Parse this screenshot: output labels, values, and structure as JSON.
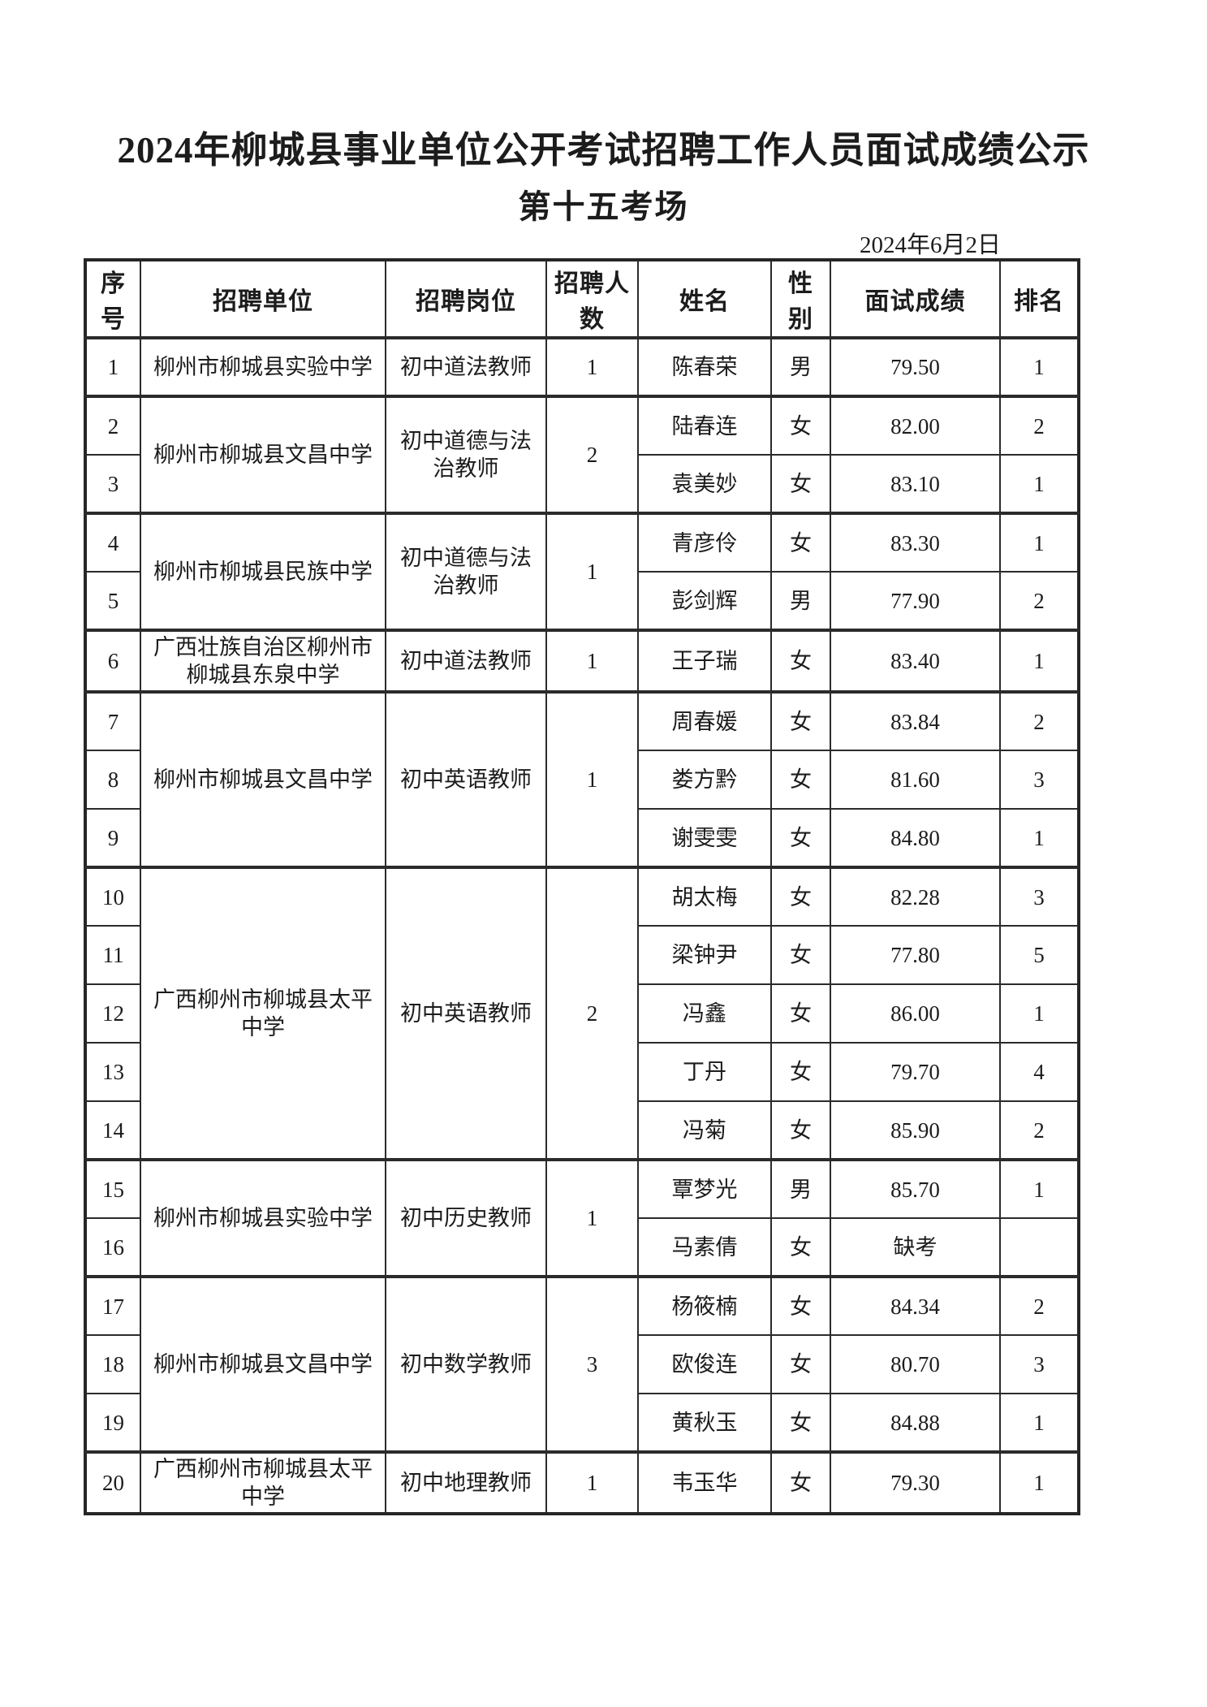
{
  "page": {
    "title": "2024年柳城县事业单位公开考试招聘工作人员面试成绩公示",
    "subtitle": "第十五考场",
    "date": "2024年6月2日"
  },
  "table": {
    "headers": [
      "序号",
      "招聘单位",
      "招聘岗位",
      "招聘人数",
      "姓名",
      "性别",
      "面试成绩",
      "排名"
    ],
    "rows": [
      {
        "no": "1",
        "unit": "柳州市柳城县实验中学",
        "unit_span": 1,
        "position": "初中道法教师",
        "position_span": 1,
        "count": "1",
        "count_span": 1,
        "name": "陈春荣",
        "gender": "男",
        "score": "79.50",
        "rank": "1",
        "group_start": true
      },
      {
        "no": "2",
        "unit": "柳州市柳城县文昌中学",
        "unit_span": 2,
        "position": "初中道德与法治教师",
        "position_span": 2,
        "count": "2",
        "count_span": 2,
        "name": "陆春连",
        "gender": "女",
        "score": "82.00",
        "rank": "2",
        "group_start": true
      },
      {
        "no": "3",
        "name": "袁美妙",
        "gender": "女",
        "score": "83.10",
        "rank": "1"
      },
      {
        "no": "4",
        "unit": "柳州市柳城县民族中学",
        "unit_span": 2,
        "position": "初中道德与法治教师",
        "position_span": 2,
        "count": "1",
        "count_span": 2,
        "name": "青彦伶",
        "gender": "女",
        "score": "83.30",
        "rank": "1",
        "group_start": true
      },
      {
        "no": "5",
        "name": "彭剑辉",
        "gender": "男",
        "score": "77.90",
        "rank": "2"
      },
      {
        "no": "6",
        "unit": "广西壮族自治区柳州市柳城县东泉中学",
        "unit_span": 1,
        "position": "初中道法教师",
        "position_span": 1,
        "count": "1",
        "count_span": 1,
        "name": "王子瑞",
        "gender": "女",
        "score": "83.40",
        "rank": "1",
        "group_start": true
      },
      {
        "no": "7",
        "unit": "柳州市柳城县文昌中学",
        "unit_span": 3,
        "position": "初中英语教师",
        "position_span": 3,
        "count": "1",
        "count_span": 3,
        "name": "周春媛",
        "gender": "女",
        "score": "83.84",
        "rank": "2",
        "group_start": true
      },
      {
        "no": "8",
        "name": "娄方黔",
        "gender": "女",
        "score": "81.60",
        "rank": "3"
      },
      {
        "no": "9",
        "name": "谢雯雯",
        "gender": "女",
        "score": "84.80",
        "rank": "1"
      },
      {
        "no": "10",
        "unit": "广西柳州市柳城县太平中学",
        "unit_span": 5,
        "position": "初中英语教师",
        "position_span": 5,
        "count": "2",
        "count_span": 5,
        "name": "胡太梅",
        "gender": "女",
        "score": "82.28",
        "rank": "3",
        "group_start": true
      },
      {
        "no": "11",
        "name": "梁钟尹",
        "gender": "女",
        "score": "77.80",
        "rank": "5"
      },
      {
        "no": "12",
        "name": "冯鑫",
        "gender": "女",
        "score": "86.00",
        "rank": "1"
      },
      {
        "no": "13",
        "name": "丁丹",
        "gender": "女",
        "score": "79.70",
        "rank": "4"
      },
      {
        "no": "14",
        "name": "冯菊",
        "gender": "女",
        "score": "85.90",
        "rank": "2"
      },
      {
        "no": "15",
        "unit": "柳州市柳城县实验中学",
        "unit_span": 2,
        "position": "初中历史教师",
        "position_span": 2,
        "count": "1",
        "count_span": 2,
        "name": "覃梦光",
        "gender": "男",
        "score": "85.70",
        "rank": "1",
        "group_start": true
      },
      {
        "no": "16",
        "name": "马素倩",
        "gender": "女",
        "score": "缺考",
        "rank": ""
      },
      {
        "no": "17",
        "unit": "柳州市柳城县文昌中学",
        "unit_span": 3,
        "position": "初中数学教师",
        "position_span": 3,
        "count": "3",
        "count_span": 3,
        "name": "杨筱楠",
        "gender": "女",
        "score": "84.34",
        "rank": "2",
        "group_start": true
      },
      {
        "no": "18",
        "name": "欧俊连",
        "gender": "女",
        "score": "80.70",
        "rank": "3"
      },
      {
        "no": "19",
        "name": "黄秋玉",
        "gender": "女",
        "score": "84.88",
        "rank": "1"
      },
      {
        "no": "20",
        "unit": "广西柳州市柳城县太平中学",
        "unit_span": 1,
        "position": "初中地理教师",
        "position_span": 1,
        "count": "1",
        "count_span": 1,
        "name": "韦玉华",
        "gender": "女",
        "score": "79.30",
        "rank": "1",
        "group_start": true
      }
    ]
  }
}
